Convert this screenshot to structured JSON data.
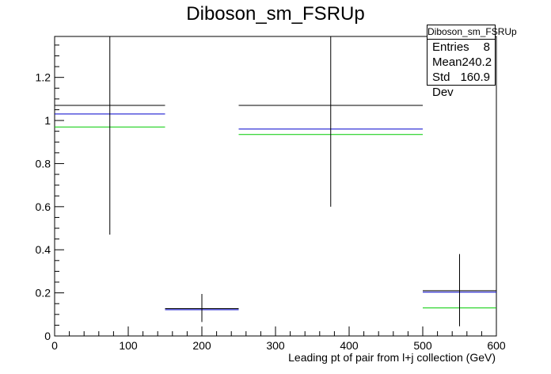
{
  "chart_data": {
    "type": "histogram",
    "title": "Diboson_sm_FSRUp",
    "xlabel": "Leading pt of pair from l+j collection (GeV)",
    "ylabel": "",
    "xlim": [
      0,
      600
    ],
    "ylim": [
      0,
      1.39
    ],
    "xticks": [
      "0",
      "100",
      "200",
      "300",
      "400",
      "500",
      "600"
    ],
    "yticks": [
      "0",
      "0.2",
      "0.4",
      "0.6",
      "0.8",
      "1",
      "1.2"
    ],
    "bins": [
      [
        0,
        150
      ],
      [
        150,
        250
      ],
      [
        250,
        500
      ],
      [
        500,
        600
      ]
    ],
    "series": [
      {
        "color": "#000000",
        "values": [
          1.07,
          0.127,
          1.07,
          0.21
        ],
        "errors": [
          [
            0.47,
            1.39
          ],
          [
            0.065,
            0.195
          ],
          [
            0.6,
            1.39
          ],
          [
            0.045,
            0.38
          ]
        ]
      },
      {
        "color": "#0000cc",
        "values": [
          1.03,
          0.122,
          0.96,
          0.203
        ]
      },
      {
        "color": "#00cc00",
        "values": [
          0.97,
          0.127,
          0.935,
          0.13
        ]
      }
    ],
    "stats": {
      "name": "Diboson_sm_FSRUp",
      "rows": [
        {
          "label": "Entries",
          "value": "8"
        },
        {
          "label": "Mean",
          "value": "240.2"
        },
        {
          "label": "Std Dev",
          "value": "160.9"
        }
      ]
    }
  }
}
